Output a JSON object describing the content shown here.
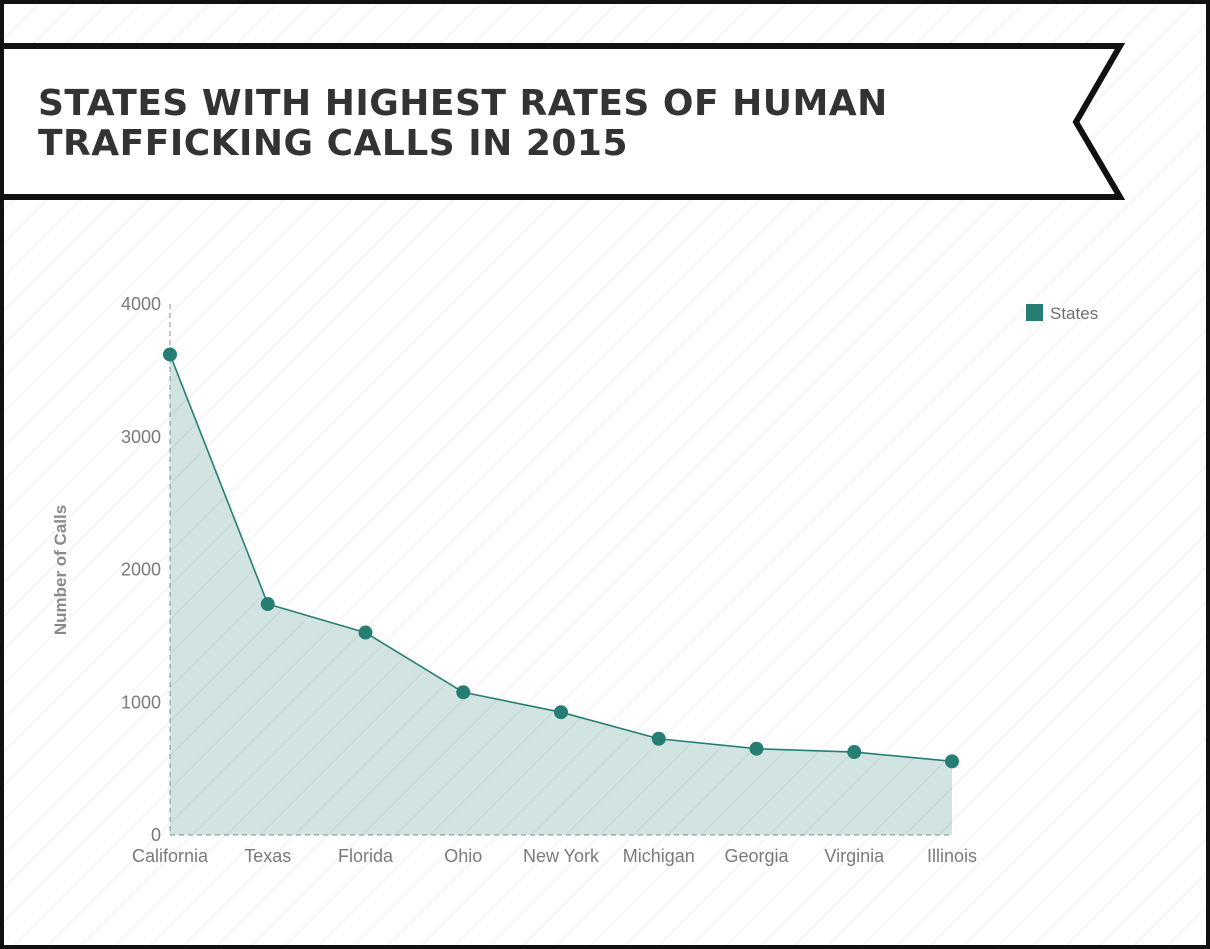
{
  "title": "STATES WITH HIGHEST RATES OF HUMAN TRAFFICKING CALLS IN 2015",
  "colors": {
    "series": "#267e73",
    "area_fill": "#267e73",
    "axis": "#b4b4b4",
    "text": "#7a7a7a",
    "frame": "#111111"
  },
  "chart_data": {
    "type": "area",
    "title": "STATES WITH HIGHEST RATES OF HUMAN TRAFFICKING CALLS IN 2015",
    "categories": [
      "California",
      "Texas",
      "Florida",
      "Ohio",
      "New York",
      "Michigan",
      "Georgia",
      "Virginia",
      "Illinois"
    ],
    "series": [
      {
        "name": "States",
        "values": [
          3620,
          1740,
          1525,
          1075,
          925,
          725,
          650,
          625,
          555
        ]
      }
    ],
    "xlabel": "",
    "ylabel": "Number of Calls",
    "ylim": [
      0,
      4000
    ],
    "yticks": [
      0,
      1000,
      2000,
      3000,
      4000
    ],
    "legend": {
      "position": "top-right",
      "entries": [
        "States"
      ]
    },
    "grid": false
  }
}
